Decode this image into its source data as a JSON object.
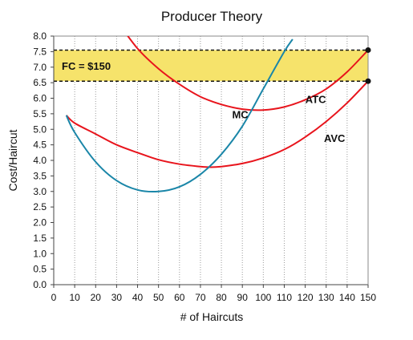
{
  "chart_data": {
    "type": "line",
    "title": "Producer Theory",
    "xlabel": "# of Haircuts",
    "ylabel": "Cost/Haircut",
    "xlim": [
      0,
      150
    ],
    "ylim": [
      0,
      8
    ],
    "xticks": [
      0,
      10,
      20,
      30,
      40,
      50,
      60,
      70,
      80,
      90,
      100,
      110,
      120,
      130,
      140,
      150
    ],
    "yticks": [
      "0.0",
      "0.5",
      "1.0",
      "1.5",
      "2.0",
      "2.5",
      "3.0",
      "3.5",
      "4.0",
      "4.5",
      "5.0",
      "5.5",
      "6.0",
      "6.5",
      "7.0",
      "7.5",
      "8.0"
    ],
    "grid": "vertical dotted",
    "series": [
      {
        "name": "ATC",
        "color": "#e8141c",
        "x": [
          30,
          40,
          50,
          60,
          70,
          80,
          90,
          100,
          110,
          120,
          130,
          140,
          150
        ],
        "y": [
          8.5,
          7.6,
          6.95,
          6.45,
          6.05,
          5.8,
          5.65,
          5.62,
          5.72,
          5.95,
          6.3,
          6.85,
          7.55
        ]
      },
      {
        "name": "AVC",
        "color": "#e8141c",
        "x": [
          6,
          10,
          20,
          30,
          40,
          50,
          60,
          70,
          75,
          80,
          90,
          100,
          110,
          120,
          130,
          140,
          150
        ],
        "y": [
          5.45,
          5.2,
          4.85,
          4.5,
          4.25,
          4.02,
          3.88,
          3.8,
          3.78,
          3.8,
          3.9,
          4.08,
          4.35,
          4.75,
          5.25,
          5.85,
          6.55
        ]
      },
      {
        "name": "MC",
        "color": "#1a86a8",
        "x": [
          6,
          10,
          20,
          30,
          40,
          50,
          60,
          70,
          80,
          90,
          100,
          110,
          114
        ],
        "y": [
          5.45,
          4.9,
          3.95,
          3.35,
          3.05,
          3.0,
          3.15,
          3.55,
          4.2,
          5.1,
          6.3,
          7.5,
          7.9
        ]
      }
    ],
    "band": {
      "label": "FC = $150",
      "y_low": 6.55,
      "y_high": 7.55,
      "x_from": 0,
      "x_to": 150,
      "fill": "#f6e36b"
    },
    "markers": [
      {
        "x": 150,
        "y": 7.55
      },
      {
        "x": 150,
        "y": 6.55
      }
    ],
    "labels": [
      {
        "text": "MC",
        "x": 89,
        "y": 5.35
      },
      {
        "text": "ATC",
        "x": 125,
        "y": 5.85
      },
      {
        "text": "AVC",
        "x": 134,
        "y": 4.6
      }
    ]
  }
}
